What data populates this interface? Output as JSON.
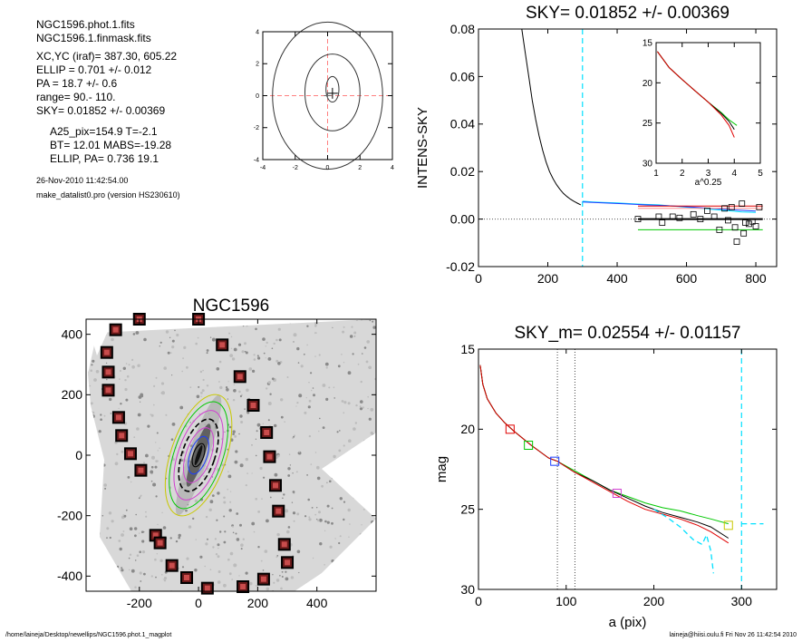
{
  "info": {
    "files": [
      "NGC1596.phot.1.fits",
      "NGC1596.1.finmask.fits"
    ],
    "params": [
      "XC,YC (iraf)=    387.30, 605.22",
      "ELLIP = 0.701 +/- 0.012",
      "PA    =  18.7 +/-   0.6",
      "range=   90.-  110.",
      "SKY= 0.01852 +/- 0.00369"
    ],
    "phot": [
      "A25_pix=154.9   T=-2.1",
      "BT=  12.01   MABS=-19.28",
      "ELLIP, PA= 0.736    19.1"
    ],
    "date": "26-Nov-2010 11:42:54.00",
    "program": "make_datalist0.pro (version HS230610)"
  },
  "footer": {
    "left": "/home/laineja/Desktop/newellips/NGC1596.phot.1_magplot",
    "right": "laineja@hiisi.oulu.fi  Fri Nov 26 11:42:54 2010"
  },
  "colors": {
    "cyan": "#00e0ff",
    "green": "#00c800",
    "red": "#e00000",
    "blue": "#1a3cff",
    "magenta": "#d040d0",
    "yellow": "#c8c800",
    "pink": "#ff9090",
    "refline": "#ff8080"
  },
  "chart_data": [
    {
      "id": "center",
      "type": "contour",
      "xlim": [
        -4,
        4
      ],
      "ylim": [
        -4,
        4
      ],
      "xticks": [
        -4,
        -2,
        0,
        2,
        4
      ],
      "yticks": [
        -4,
        -2,
        0,
        2,
        4
      ],
      "crosshair": [
        0,
        0
      ],
      "contours": [
        {
          "cx": 0.3,
          "cy": 0.4,
          "rx": 0.4,
          "ry": 0.8
        },
        {
          "cx": 0.3,
          "cy": 0.2,
          "rx": 1.7,
          "ry": 2.4
        },
        {
          "cx": 0.0,
          "cy": 0.0,
          "rx": 3.4,
          "ry": 4.6
        }
      ]
    },
    {
      "id": "sky",
      "type": "line",
      "title": "SKY= 0.01852 +/- 0.00369",
      "ylabel": "INTENS-SKY",
      "xlim": [
        0,
        860
      ],
      "ylim": [
        -0.02,
        0.08
      ],
      "xticks": [
        0,
        200,
        400,
        600,
        800
      ],
      "yticks": [
        -0.02,
        0.0,
        0.02,
        0.04,
        0.06,
        0.08
      ],
      "ytick_labels": [
        "-0.02",
        "0.00",
        "0.02",
        "0.04",
        "0.06",
        "0.08"
      ],
      "vline": 300,
      "series": [
        {
          "color": "black",
          "points": [
            [
              125,
              0.08
            ],
            [
              135,
              0.07
            ],
            [
              145,
              0.06
            ],
            [
              155,
              0.05
            ],
            [
              165,
              0.042
            ],
            [
              175,
              0.035
            ],
            [
              185,
              0.029
            ],
            [
              195,
              0.024
            ],
            [
              205,
              0.02
            ],
            [
              215,
              0.017
            ],
            [
              225,
              0.0145
            ],
            [
              235,
              0.0125
            ],
            [
              245,
              0.0108
            ],
            [
              255,
              0.0095
            ],
            [
              265,
              0.0084
            ],
            [
              275,
              0.0075
            ],
            [
              285,
              0.0067
            ],
            [
              295,
              0.006
            ]
          ]
        },
        {
          "color": "cyan",
          "points": [
            [
              300,
              0.0075
            ],
            [
              330,
              0.0072
            ],
            [
              360,
              0.007
            ],
            [
              400,
              0.0068
            ],
            [
              440,
              0.0065
            ],
            [
              480,
              0.0062
            ],
            [
              520,
              0.006
            ],
            [
              560,
              0.0055
            ],
            [
              600,
              0.005
            ],
            [
              640,
              0.0045
            ],
            [
              680,
              0.004
            ],
            [
              720,
              0.0035
            ],
            [
              760,
              0.003
            ],
            [
              800,
              0.0028
            ]
          ]
        },
        {
          "color": "blue",
          "points": [
            [
              300,
              0.0072
            ],
            [
              360,
              0.0068
            ],
            [
              420,
              0.0064
            ],
            [
              480,
              0.006
            ],
            [
              540,
              0.0057
            ],
            [
              600,
              0.0052
            ],
            [
              660,
              0.0046
            ],
            [
              720,
              0.004
            ],
            [
              800,
              0.0034
            ]
          ]
        },
        {
          "color": "pink",
          "points": [
            [
              460,
              0.0045
            ],
            [
              820,
              0.0045
            ]
          ]
        },
        {
          "color": "red",
          "points": [
            [
              460,
              0.0055
            ],
            [
              820,
              0.0055
            ]
          ]
        },
        {
          "color": "green",
          "points": [
            [
              460,
              -0.0045
            ],
            [
              820,
              -0.0045
            ]
          ]
        }
      ],
      "sky_level": {
        "x": [
          460,
          820
        ],
        "y": 0.0
      },
      "squares": [
        [
          460,
          0.0
        ],
        [
          520,
          0.001
        ],
        [
          530,
          -0.0015
        ],
        [
          560,
          0.001
        ],
        [
          580,
          0.0005
        ],
        [
          620,
          0.002
        ],
        [
          640,
          0.0
        ],
        [
          660,
          0.0035
        ],
        [
          680,
          0.001
        ],
        [
          695,
          -0.0045
        ],
        [
          710,
          0.0045
        ],
        [
          720,
          -0.0005
        ],
        [
          730,
          0.005
        ],
        [
          740,
          -0.0035
        ],
        [
          745,
          -0.0095
        ],
        [
          760,
          0.0065
        ],
        [
          765,
          -0.006
        ],
        [
          770,
          -0.0015
        ],
        [
          780,
          -0.002
        ],
        [
          790,
          -0.001
        ],
        [
          800,
          -0.003
        ],
        [
          810,
          0.005
        ]
      ],
      "inset": {
        "xlabel": "a^0.25",
        "xlim": [
          1,
          5
        ],
        "ylim": [
          15,
          30
        ],
        "xticks": [
          1,
          2,
          3,
          4,
          5
        ],
        "yticks": [
          15,
          20,
          25,
          30
        ],
        "series": [
          {
            "color": "green",
            "points": [
              [
                1.05,
                16.1
              ],
              [
                1.5,
                18.1
              ],
              [
                2,
                19.6
              ],
              [
                2.5,
                21.0
              ],
              [
                3,
                22.4
              ],
              [
                3.5,
                23.7
              ],
              [
                3.8,
                24.6
              ],
              [
                4.1,
                25.3
              ]
            ]
          },
          {
            "color": "black",
            "points": [
              [
                1.05,
                16.1
              ],
              [
                1.5,
                18.1
              ],
              [
                2,
                19.6
              ],
              [
                2.5,
                21.0
              ],
              [
                3,
                22.4
              ],
              [
                3.5,
                23.8
              ],
              [
                3.8,
                24.8
              ],
              [
                4.0,
                25.8
              ]
            ]
          },
          {
            "color": "red",
            "points": [
              [
                1.05,
                16.1
              ],
              [
                1.5,
                18.1
              ],
              [
                2,
                19.6
              ],
              [
                2.5,
                21.0
              ],
              [
                3,
                22.4
              ],
              [
                3.5,
                24.0
              ],
              [
                3.8,
                25.3
              ],
              [
                4.0,
                26.8
              ]
            ]
          }
        ]
      }
    },
    {
      "id": "image",
      "type": "image",
      "title": "NGC1596",
      "xlim": [
        -380,
        600
      ],
      "ylim": [
        -450,
        450
      ],
      "xticks": [
        -200,
        0,
        200,
        400
      ],
      "yticks": [
        -400,
        -200,
        0,
        200,
        400
      ],
      "isophote_axis_ratios": [
        0.3
      ],
      "ellipse": {
        "pa_deg": 19,
        "a": [
          40,
          65,
          95,
          125,
          155,
          185,
          210
        ],
        "colors": [
          "black",
          "blue",
          "magenta",
          "black",
          "magenta",
          "green",
          "yellow"
        ]
      },
      "masks": [
        [
          -280,
          415
        ],
        [
          -200,
          450
        ],
        [
          0,
          450
        ],
        [
          80,
          365
        ],
        [
          -310,
          340
        ],
        [
          -305,
          275
        ],
        [
          140,
          260
        ],
        [
          -305,
          215
        ],
        [
          185,
          165
        ],
        [
          -270,
          125
        ],
        [
          -260,
          65
        ],
        [
          230,
          75
        ],
        [
          -230,
          5
        ],
        [
          240,
          -5
        ],
        [
          -195,
          -50
        ],
        [
          260,
          -100
        ],
        [
          270,
          -185
        ],
        [
          -145,
          -265
        ],
        [
          -130,
          -290
        ],
        [
          290,
          -295
        ],
        [
          -90,
          -365
        ],
        [
          300,
          -355
        ],
        [
          -40,
          -405
        ],
        [
          220,
          -410
        ],
        [
          30,
          -440
        ],
        [
          150,
          -435
        ]
      ]
    },
    {
      "id": "mag",
      "type": "line",
      "title": "SKY_m=  0.02554 +/- 0.01157",
      "xlabel": "a (pix)",
      "ylabel": "mag",
      "xlim": [
        0,
        340
      ],
      "ylim": [
        30,
        15
      ],
      "xticks": [
        0,
        100,
        200,
        300
      ],
      "yticks": [
        15,
        20,
        25,
        30
      ],
      "vlines_dotted": [
        90,
        110
      ],
      "vline_dashed": 300,
      "series": [
        {
          "color": "green",
          "points": [
            [
              2,
              16.0
            ],
            [
              5,
              17.2
            ],
            [
              10,
              18.1
            ],
            [
              20,
              19.0
            ],
            [
              30,
              19.6
            ],
            [
              40,
              20.1
            ],
            [
              60,
              21.0
            ],
            [
              80,
              21.8
            ],
            [
              90,
              22.0
            ],
            [
              110,
              22.6
            ],
            [
              130,
              23.2
            ],
            [
              150,
              23.8
            ],
            [
              170,
              24.2
            ],
            [
              190,
              24.6
            ],
            [
              210,
              24.9
            ],
            [
              230,
              25.1
            ],
            [
              250,
              25.4
            ],
            [
              265,
              25.6
            ],
            [
              285,
              25.9
            ]
          ]
        },
        {
          "color": "black",
          "points": [
            [
              2,
              16.0
            ],
            [
              5,
              17.2
            ],
            [
              10,
              18.1
            ],
            [
              20,
              19.0
            ],
            [
              30,
              19.6
            ],
            [
              40,
              20.1
            ],
            [
              60,
              21.0
            ],
            [
              80,
              21.8
            ],
            [
              90,
              22.0
            ],
            [
              110,
              22.7
            ],
            [
              130,
              23.2
            ],
            [
              150,
              23.8
            ],
            [
              170,
              24.3
            ],
            [
              190,
              24.8
            ],
            [
              210,
              25.2
            ],
            [
              230,
              25.5
            ],
            [
              250,
              25.8
            ],
            [
              265,
              26.1
            ],
            [
              285,
              26.8
            ]
          ]
        },
        {
          "color": "red",
          "points": [
            [
              2,
              16.0
            ],
            [
              5,
              17.2
            ],
            [
              10,
              18.1
            ],
            [
              20,
              19.0
            ],
            [
              30,
              19.6
            ],
            [
              40,
              20.1
            ],
            [
              60,
              21.0
            ],
            [
              80,
              21.8
            ],
            [
              90,
              22.0
            ],
            [
              110,
              22.7
            ],
            [
              130,
              23.3
            ],
            [
              150,
              23.9
            ],
            [
              170,
              24.5
            ],
            [
              190,
              25.0
            ],
            [
              210,
              25.3
            ],
            [
              230,
              25.6
            ],
            [
              250,
              26.0
            ],
            [
              265,
              26.4
            ],
            [
              285,
              27.1
            ]
          ]
        },
        {
          "color": "cyan",
          "dashed": true,
          "points": [
            [
              200,
              25.0
            ],
            [
              215,
              25.5
            ],
            [
              230,
              26.1
            ],
            [
              245,
              26.9
            ],
            [
              255,
              27.2
            ],
            [
              260,
              26.6
            ],
            [
              265,
              27.6
            ],
            [
              268,
              29.0
            ]
          ]
        },
        {
          "color": "cyan",
          "dashed": true,
          "points": [
            [
              300,
              25.9
            ],
            [
              325,
              25.9
            ]
          ]
        }
      ],
      "markers": [
        {
          "x": 36,
          "y": 20.0,
          "color": "red"
        },
        {
          "x": 57,
          "y": 21.0,
          "color": "green"
        },
        {
          "x": 87,
          "y": 22.0,
          "color": "blue"
        },
        {
          "x": 158,
          "y": 24.0,
          "color": "magenta"
        },
        {
          "x": 285,
          "y": 26.0,
          "color": "yellow"
        }
      ]
    }
  ]
}
